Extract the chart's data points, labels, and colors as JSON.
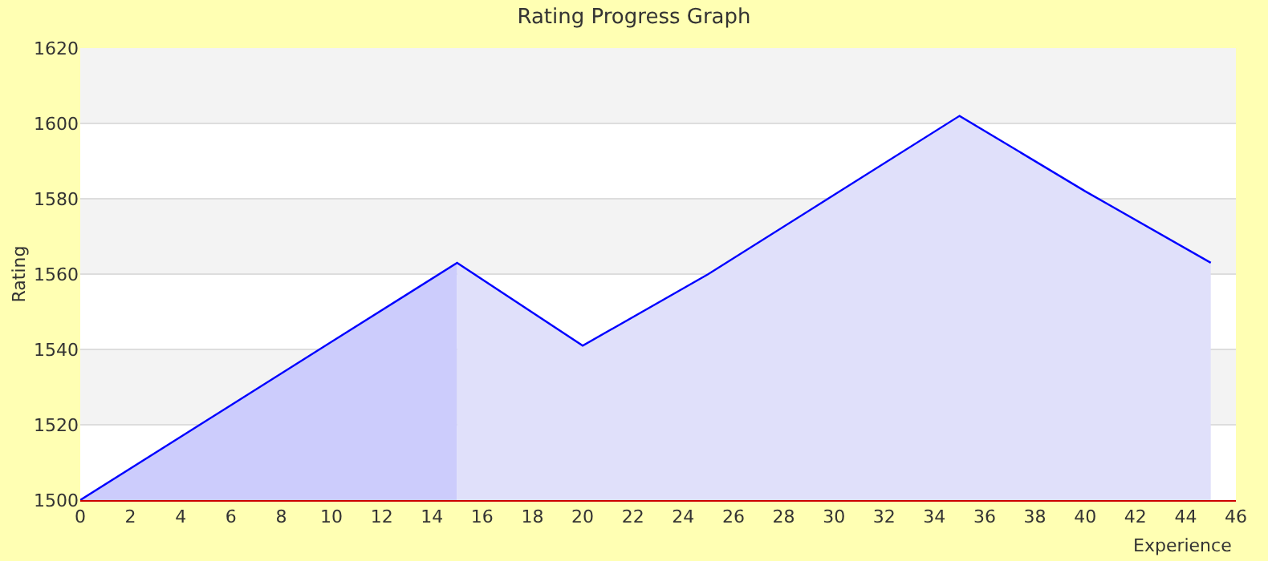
{
  "chart_data": {
    "type": "area",
    "title": "Rating Progress Graph",
    "xlabel": "Experience",
    "ylabel": "Rating",
    "series": [
      {
        "color": "#ccccfc",
        "x": [
          0,
          5,
          10,
          15
        ],
        "values": [
          1500,
          1521,
          1542,
          1563
        ]
      },
      {
        "color": "#e0e0fa",
        "x": [
          15,
          20,
          25,
          30,
          35,
          40,
          45
        ],
        "values": [
          1563,
          1541,
          1560,
          1581,
          1602,
          1582,
          1563
        ]
      },
      {
        "type": "line",
        "color": "#0000ff",
        "x": [
          0,
          5,
          10,
          15,
          20,
          25,
          30,
          35,
          40,
          45
        ],
        "values": [
          1500,
          1521,
          1542,
          1563,
          1541,
          1560,
          1581,
          1602,
          1582,
          1563
        ]
      }
    ],
    "xlim": [
      0,
      46
    ],
    "xticks": [
      0,
      2,
      4,
      6,
      8,
      10,
      12,
      14,
      16,
      18,
      20,
      22,
      24,
      26,
      28,
      30,
      32,
      34,
      36,
      38,
      40,
      42,
      44,
      46
    ],
    "ylim": [
      1500,
      1620
    ],
    "yticks": [
      1500,
      1520,
      1540,
      1560,
      1580,
      1600,
      1620
    ],
    "grid": "y",
    "marker": "none",
    "line_style": "solid"
  }
}
